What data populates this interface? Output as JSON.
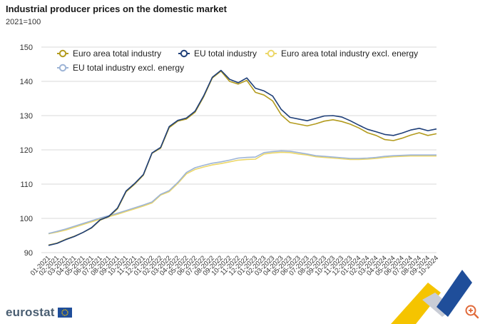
{
  "title": "Industrial producer prices on the domestic market",
  "subtitle": "2021=100",
  "brand": {
    "name": "eurostat"
  },
  "icons": {
    "zoom": "zoom-in-icon",
    "flag": "eu-flag-icon",
    "decoration": "eurostat-chevron-graphic"
  },
  "colors": {
    "grid": "#d9d9d9",
    "axis_text": "#333333",
    "accent_yellow": "#f5c400",
    "accent_blue": "#1f4e9a"
  },
  "chart_data": {
    "type": "line",
    "title": "Industrial producer prices on the domestic market",
    "ylabel": "2021=100",
    "ylim": [
      90,
      150
    ],
    "yticks": [
      90,
      100,
      110,
      120,
      130,
      140,
      150
    ],
    "grid": true,
    "legend_position": "top-left",
    "categories": [
      "01-2021",
      "02-2021",
      "03-2021",
      "04-2021",
      "05-2021",
      "06-2021",
      "07-2021",
      "08-2021",
      "09-2021",
      "10-2021",
      "11-2021",
      "12-2021",
      "01-2022",
      "02-2022",
      "03-2022",
      "04-2022",
      "05-2022",
      "06-2022",
      "07-2022",
      "08-2022",
      "09-2022",
      "10-2022",
      "11-2022",
      "12-2022",
      "01-2023",
      "02-2023",
      "03-2023",
      "04-2023",
      "05-2023",
      "06-2023",
      "07-2023",
      "08-2023",
      "09-2023",
      "10-2023",
      "11-2023",
      "12-2023",
      "01-2024",
      "02-2024",
      "03-2024",
      "04-2024",
      "05-2024",
      "06-2024",
      "07-2024",
      "08-2024",
      "09-2024",
      "10-2024"
    ],
    "series": [
      {
        "name": "Euro area total industry",
        "color": "#b39b1e",
        "values": [
          92.2,
          92.8,
          93.9,
          94.8,
          95.9,
          97.2,
          99.5,
          100.5,
          102.8,
          107.8,
          110.0,
          112.6,
          119.0,
          120.5,
          126.5,
          128.4,
          129.0,
          131.0,
          135.5,
          141.0,
          143.0,
          140.0,
          139.2,
          140.3,
          136.8,
          136.0,
          134.3,
          130.2,
          128.0,
          127.5,
          127.0,
          127.6,
          128.4,
          128.8,
          128.3,
          127.5,
          126.4,
          125.0,
          124.2,
          123.0,
          122.7,
          123.4,
          124.3,
          125.0,
          124.2,
          124.7
        ]
      },
      {
        "name": "EU total industry",
        "color": "#1f3f78",
        "values": [
          92.1,
          92.7,
          93.8,
          94.7,
          95.9,
          97.3,
          99.6,
          100.6,
          103.0,
          108.0,
          110.2,
          112.8,
          119.1,
          120.7,
          126.8,
          128.6,
          129.3,
          131.3,
          135.8,
          141.2,
          143.2,
          140.6,
          139.6,
          141.0,
          138.0,
          137.2,
          135.7,
          131.8,
          129.5,
          129.0,
          128.5,
          129.2,
          129.9,
          130.0,
          129.6,
          128.5,
          127.2,
          126.0,
          125.3,
          124.5,
          124.2,
          124.9,
          125.8,
          126.3,
          125.6,
          126.1
        ]
      },
      {
        "name": "Euro area total industry excl. energy",
        "color": "#ecd768",
        "values": [
          95.5,
          96.0,
          96.6,
          97.4,
          98.2,
          99.0,
          99.8,
          100.5,
          101.2,
          102.0,
          102.8,
          103.6,
          104.5,
          106.8,
          107.8,
          110.2,
          113.0,
          114.3,
          115.0,
          115.6,
          116.0,
          116.5,
          117.0,
          117.2,
          117.3,
          118.8,
          119.1,
          119.3,
          119.2,
          118.8,
          118.5,
          118.0,
          117.8,
          117.6,
          117.4,
          117.2,
          117.2,
          117.3,
          117.5,
          117.8,
          118.0,
          118.1,
          118.2,
          118.2,
          118.2,
          118.2
        ]
      },
      {
        "name": "EU total industry excl. energy",
        "color": "#9db4d6",
        "values": [
          95.6,
          96.2,
          96.9,
          97.7,
          98.5,
          99.3,
          100.1,
          100.8,
          101.5,
          102.3,
          103.1,
          103.9,
          104.8,
          107.0,
          108.1,
          110.5,
          113.4,
          114.8,
          115.5,
          116.1,
          116.5,
          117.0,
          117.6,
          117.8,
          117.9,
          119.2,
          119.5,
          119.7,
          119.6,
          119.2,
          118.8,
          118.3,
          118.1,
          117.9,
          117.7,
          117.5,
          117.5,
          117.6,
          117.8,
          118.1,
          118.3,
          118.4,
          118.5,
          118.5,
          118.5,
          118.5
        ]
      }
    ]
  }
}
